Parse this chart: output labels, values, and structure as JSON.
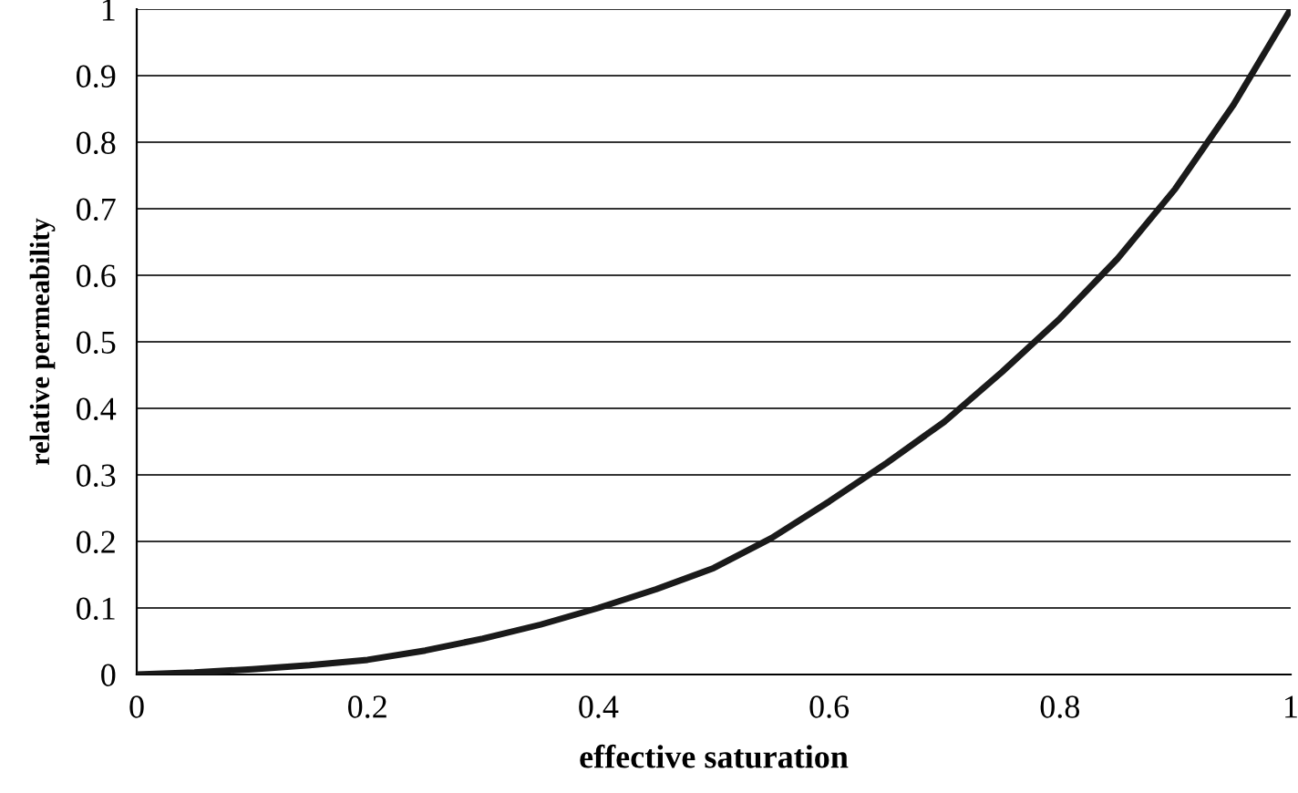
{
  "chart_data": {
    "type": "line",
    "xlabel": "effective saturation",
    "ylabel": "relative permeability",
    "x": [
      0,
      0.05,
      0.1,
      0.15,
      0.2,
      0.25,
      0.3,
      0.35,
      0.4,
      0.45,
      0.5,
      0.55,
      0.6,
      0.65,
      0.7,
      0.75,
      0.8,
      0.85,
      0.9,
      0.95,
      1
    ],
    "series": [
      {
        "color": "#1a1a1a",
        "values": [
          0,
          0.003,
          0.008,
          0.014,
          0.022,
          0.036,
          0.054,
          0.075,
          0.1,
          0.128,
          0.16,
          0.205,
          0.26,
          0.318,
          0.38,
          0.455,
          0.535,
          0.625,
          0.73,
          0.855,
          1.0
        ]
      }
    ],
    "xlim": [
      0,
      1
    ],
    "ylim": [
      0,
      1
    ],
    "xticks": [
      0,
      0.2,
      0.4,
      0.6,
      0.8,
      1
    ],
    "yticks": [
      0,
      0.1,
      0.2,
      0.3,
      0.4,
      0.5,
      0.6,
      0.7,
      0.8,
      0.9,
      1
    ],
    "grid": "y",
    "legend": false,
    "marker": "none",
    "line_style": "solid"
  }
}
